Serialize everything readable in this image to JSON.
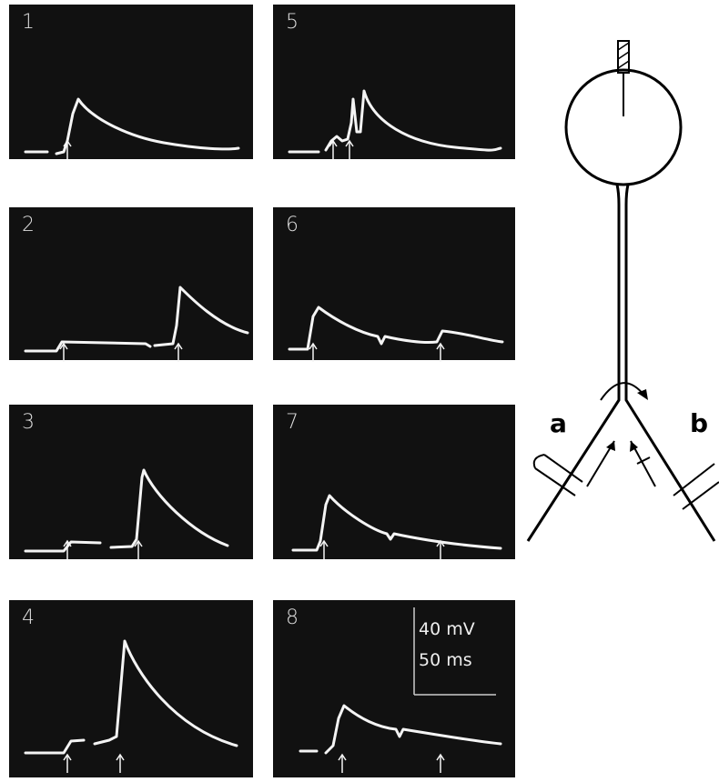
{
  "panels": [
    {
      "label": "1"
    },
    {
      "label": "2"
    },
    {
      "label": "3"
    },
    {
      "label": "4"
    },
    {
      "label": "5"
    },
    {
      "label": "6"
    },
    {
      "label": "7"
    },
    {
      "label": "8"
    }
  ],
  "scale_bar": {
    "voltage": "40 mV",
    "time": "50 ms"
  },
  "diagram": {
    "branch_a": "a",
    "branch_b": "b"
  }
}
